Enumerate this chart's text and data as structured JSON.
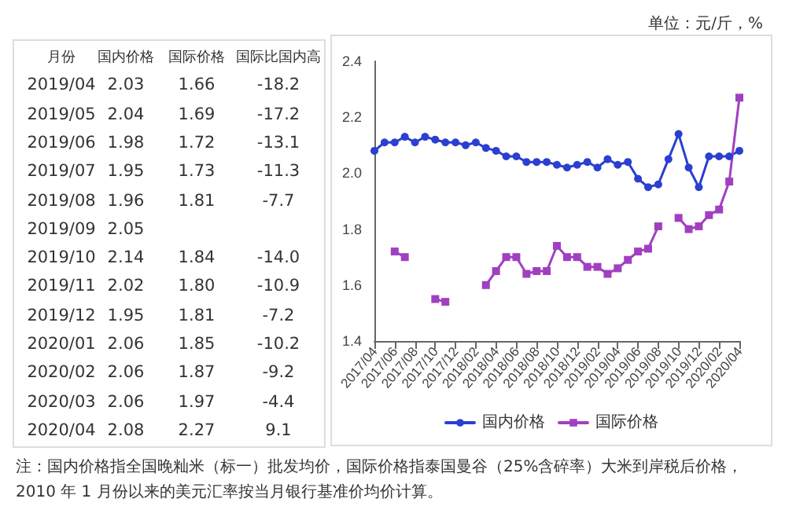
{
  "chart_data": {
    "type": "line",
    "categories": [
      "2017/04",
      null,
      "2017/06",
      null,
      "2017/08",
      null,
      "2017/10",
      null,
      "2017/12",
      null,
      "2018/02",
      null,
      "2018/04",
      null,
      "2018/06",
      null,
      "2018/08",
      null,
      "2018/10",
      null,
      "2018/12",
      null,
      "2019/02",
      null,
      "2019/04",
      null,
      "2019/06",
      null,
      "2019/08",
      null,
      "2019/10",
      null,
      "2019/12",
      null,
      "2020/02",
      null,
      "2020/04"
    ],
    "series": [
      {
        "name": "国内价格",
        "color": "#2b3fd0",
        "marker": "circle",
        "values": [
          2.08,
          2.11,
          2.11,
          2.13,
          2.11,
          2.13,
          2.12,
          2.11,
          2.11,
          2.1,
          2.11,
          2.09,
          2.08,
          2.06,
          2.06,
          2.04,
          2.04,
          2.04,
          2.03,
          2.02,
          2.03,
          2.04,
          2.02,
          2.05,
          2.03,
          2.04,
          1.98,
          1.95,
          1.96,
          2.05,
          2.14,
          2.02,
          1.95,
          2.06,
          2.06,
          2.06,
          2.08
        ]
      },
      {
        "name": "国际价格",
        "color": "#a040c0",
        "marker": "square",
        "values": [
          null,
          null,
          1.72,
          1.7,
          null,
          null,
          1.55,
          1.54,
          null,
          null,
          null,
          1.6,
          1.65,
          1.7,
          1.7,
          1.64,
          1.65,
          1.65,
          1.74,
          1.7,
          1.7,
          1.665,
          1.665,
          1.64,
          1.66,
          1.69,
          1.72,
          1.73,
          1.81,
          null,
          1.84,
          1.8,
          1.81,
          1.85,
          1.87,
          1.97,
          2.27
        ]
      }
    ],
    "ylim": [
      1.4,
      2.4
    ],
    "yticks": [
      1.4,
      1.6,
      1.8,
      {
        "value": 2.0,
        "label": "2.0"
      },
      2.2,
      2.4
    ],
    "grid": false,
    "legend": "bottom",
    "line_style": "solid",
    "annotations": [
      "单位：元/斤，%",
      "注：国内价格指全国晚籼米（标一）批发均价，国际价格指泰国曼谷（25%含碎率）大米到岸税后价格，2010 年 1 月份以来的美元汇率按当月银行基准价均价计算。",
      "月份",
      "国内价格",
      "国际价格",
      "国际比国内高",
      "2019/04",
      "2.03",
      "1.66",
      "-18.2",
      "2019/05",
      "2.04",
      "1.69",
      "-17.2",
      "2019/06",
      "1.98",
      "1.72",
      "-13.1",
      "2019/07",
      "1.95",
      "1.73",
      "-11.3",
      "2019/08",
      "1.96",
      "1.81",
      "-7.7",
      "2019/09",
      "2.05",
      null,
      null,
      "2019/10",
      "2.14",
      "1.84",
      "-14.0",
      "2019/11",
      "2.02",
      "1.80",
      "-10.9",
      "2019/12",
      "1.95",
      "1.81",
      "-7.2",
      "2020/01",
      "2.06",
      "1.85",
      "-10.2",
      "2020/02",
      "2.06",
      "1.87",
      "-9.2",
      "2020/03",
      "2.06",
      "1.97",
      "-4.4",
      "2020/04",
      "2.08",
      "2.27",
      "9.1"
    ]
  }
}
